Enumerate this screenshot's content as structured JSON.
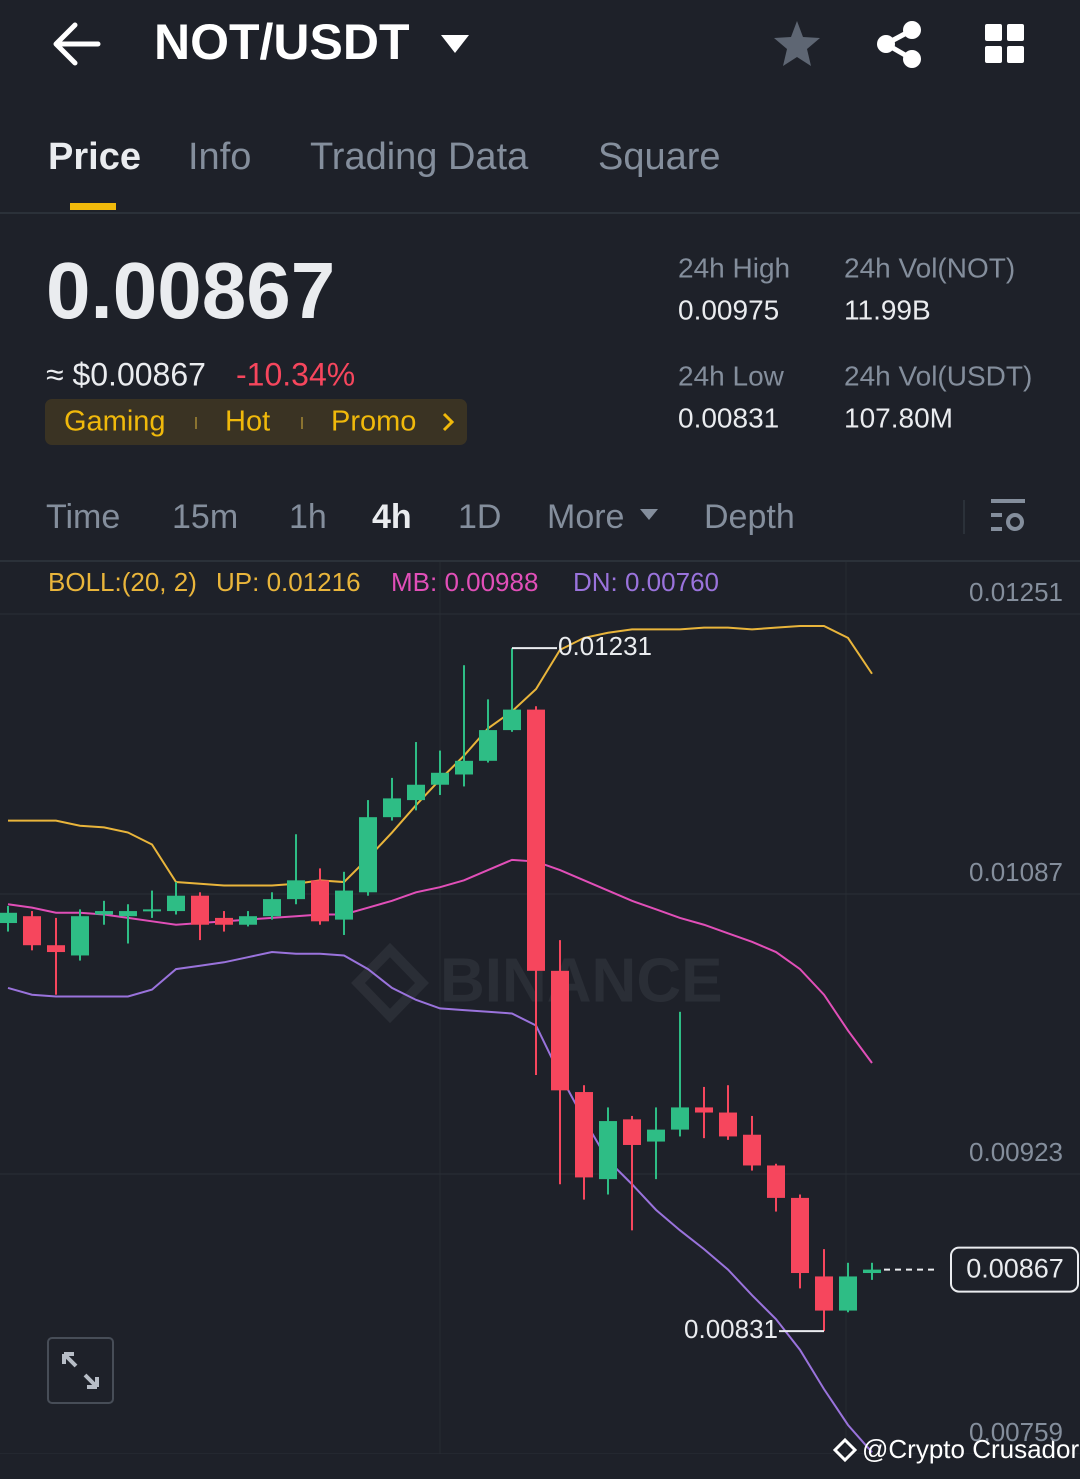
{
  "header": {
    "pair": "NOT/USDT"
  },
  "tabs": [
    "Price",
    "Info",
    "Trading Data",
    "Square"
  ],
  "ticker": {
    "price": "0.00867",
    "fiat": "≈ $0.00867",
    "change": "-10.34%",
    "tags": [
      "Gaming",
      "Hot",
      "Promo"
    ],
    "stats": [
      {
        "label": "24h High",
        "value": "0.00975"
      },
      {
        "label": "24h Vol(NOT)",
        "value": "11.99B"
      },
      {
        "label": "24h Low",
        "value": "0.00831"
      },
      {
        "label": "24h Vol(USDT)",
        "value": "107.80M"
      }
    ]
  },
  "intervals": [
    "Time",
    "15m",
    "1h",
    "4h",
    "1D",
    "More",
    "Depth"
  ],
  "chart_data": {
    "type": "candlestick",
    "indicator": "BOLL:(20, 2)",
    "watermark_logo": "BINANCE",
    "ylim": [
      0.00759,
      0.01251
    ],
    "yticks": [
      0.01251,
      0.01087,
      0.00923,
      0.00759
    ],
    "grid": true,
    "up_color": "#2ebd85",
    "down_color": "#f6465d",
    "open": [
      0.0107,
      0.01074,
      0.01057,
      0.01051,
      0.01075,
      0.01074,
      0.01077,
      0.01077,
      0.01086,
      0.01073,
      0.01069,
      0.01074,
      0.01084,
      0.01095,
      0.01072,
      0.01088,
      0.01132,
      0.01142,
      0.01151,
      0.01157,
      0.01165,
      0.01183,
      0.01195,
      0.01042,
      0.00971,
      0.0092,
      0.00955,
      0.00942,
      0.00949,
      0.00962,
      0.00959,
      0.00946,
      0.00928,
      0.00909,
      0.00863,
      0.00843,
      0.00865
    ],
    "high": [
      0.0108,
      0.01077,
      0.01073,
      0.01078,
      0.01083,
      0.01081,
      0.01089,
      0.01094,
      0.01088,
      0.01077,
      0.01077,
      0.01088,
      0.01122,
      0.01102,
      0.011,
      0.01142,
      0.01155,
      0.01176,
      0.01171,
      0.01221,
      0.01201,
      0.01231,
      0.01197,
      0.0106,
      0.00975,
      0.00962,
      0.00957,
      0.00962,
      0.01018,
      0.00974,
      0.00975,
      0.00957,
      0.00929,
      0.00911,
      0.00879,
      0.00871,
      0.00871
    ],
    "low": [
      0.01065,
      0.01054,
      0.01028,
      0.01048,
      0.01069,
      0.01058,
      0.01073,
      0.01075,
      0.0106,
      0.01065,
      0.01068,
      0.01072,
      0.01081,
      0.01069,
      0.01063,
      0.01086,
      0.0113,
      0.01136,
      0.01145,
      0.0115,
      0.01164,
      0.01182,
      0.00981,
      0.00917,
      0.00908,
      0.00911,
      0.0089,
      0.0092,
      0.00945,
      0.00944,
      0.00943,
      0.00925,
      0.00901,
      0.00856,
      0.00831,
      0.00842,
      0.00861
    ],
    "close": [
      0.01076,
      0.01057,
      0.01053,
      0.01074,
      0.01077,
      0.01077,
      0.01078,
      0.01086,
      0.01069,
      0.01069,
      0.01074,
      0.01084,
      0.01095,
      0.01071,
      0.01089,
      0.01132,
      0.01143,
      0.01151,
      0.01158,
      0.01165,
      0.01183,
      0.01195,
      0.01042,
      0.00972,
      0.00921,
      0.00954,
      0.0094,
      0.00949,
      0.00962,
      0.00959,
      0.00945,
      0.00928,
      0.00909,
      0.00865,
      0.00843,
      0.00863,
      0.00867
    ],
    "series": [
      {
        "name": "UP: 0.01216",
        "color": "#e9b53b",
        "values": [
          0.0113,
          0.0113,
          0.0113,
          0.01127,
          0.01126,
          0.01123,
          0.01116,
          0.01094,
          0.01093,
          0.01092,
          0.01092,
          0.01092,
          0.01093,
          0.01095,
          0.01094,
          0.01108,
          0.01123,
          0.01139,
          0.01154,
          0.01168,
          0.01184,
          0.01194,
          0.01207,
          0.0123,
          0.01237,
          0.0124,
          0.01242,
          0.01242,
          0.01242,
          0.01243,
          0.01243,
          0.01242,
          0.01243,
          0.01244,
          0.01244,
          0.01237,
          0.01216
        ]
      },
      {
        "name": "MB: 0.00988",
        "color": "#e14fb8",
        "values": [
          0.01081,
          0.01079,
          0.01076,
          0.01076,
          0.01075,
          0.01073,
          0.01071,
          0.01069,
          0.0107,
          0.01071,
          0.01072,
          0.01073,
          0.01074,
          0.01075,
          0.01075,
          0.01079,
          0.01083,
          0.01088,
          0.01091,
          0.01095,
          0.01101,
          0.01107,
          0.01106,
          0.01101,
          0.01095,
          0.01089,
          0.01083,
          0.01078,
          0.01073,
          0.01069,
          0.01064,
          0.01059,
          0.01053,
          0.01043,
          0.01028,
          0.01007,
          0.00988
        ]
      },
      {
        "name": "DN: 0.00760",
        "color": "#9a73dc",
        "values": [
          0.01032,
          0.01028,
          0.01027,
          0.01027,
          0.01027,
          0.01027,
          0.01031,
          0.01043,
          0.01045,
          0.01047,
          0.0105,
          0.01053,
          0.01052,
          0.01052,
          0.01051,
          0.01043,
          0.01032,
          0.01025,
          0.0102,
          0.01019,
          0.01018,
          0.01017,
          0.0101,
          0.00981,
          0.00955,
          0.00931,
          0.00917,
          0.00902,
          0.0089,
          0.00879,
          0.00867,
          0.00852,
          0.00838,
          0.0082,
          0.00797,
          0.00776,
          0.0076
        ]
      }
    ]
  },
  "watermark": "@Crypto Crusador"
}
